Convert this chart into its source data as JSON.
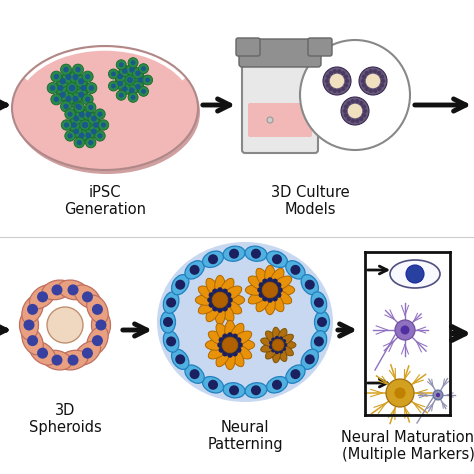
{
  "bg_color": "#ffffff",
  "label1": "iPSC\nGeneration",
  "label2": "3D Culture\nModels",
  "label3": "3D\nSpheroids",
  "label4": "Neural\nPatterning",
  "label5": "Neural Maturation\n(Multiple Markers)",
  "petri_fill": "#f2b8b8",
  "petri_edge": "#b08888",
  "colony_outer": "#2a8a4a",
  "colony_inner": "#1a5a8a",
  "bioreactor_fill": "#e8e8e8",
  "bioreactor_edge": "#888888",
  "bioreactor_cap": "#909090",
  "liquid_fill": "#f2b8b8",
  "mag_edge": "#888888",
  "spheroid_outer": "#6a5a80",
  "spheroid_dots": "#4a3a60",
  "spheroid_inner": "#f0e0c0",
  "neural_sphere_bg": "#c8d8f0",
  "neural_sphere_border": "#3090d0",
  "border_cell_fill": "#50b0e0",
  "border_cell_edge": "#2080c0",
  "border_nuc": "#1a2060",
  "flower_orange": "#e8920a",
  "flower_edge": "#b06800",
  "flower_nuc": "#1a2060",
  "rosette_petal": "#e8a080",
  "rosette_edge": "#c07060",
  "rosette_center": "#f0d8c0",
  "rosette_nuc": "#3840a0",
  "arrow_color": "#111111",
  "box_edge": "#111111",
  "font_size": 10.5
}
